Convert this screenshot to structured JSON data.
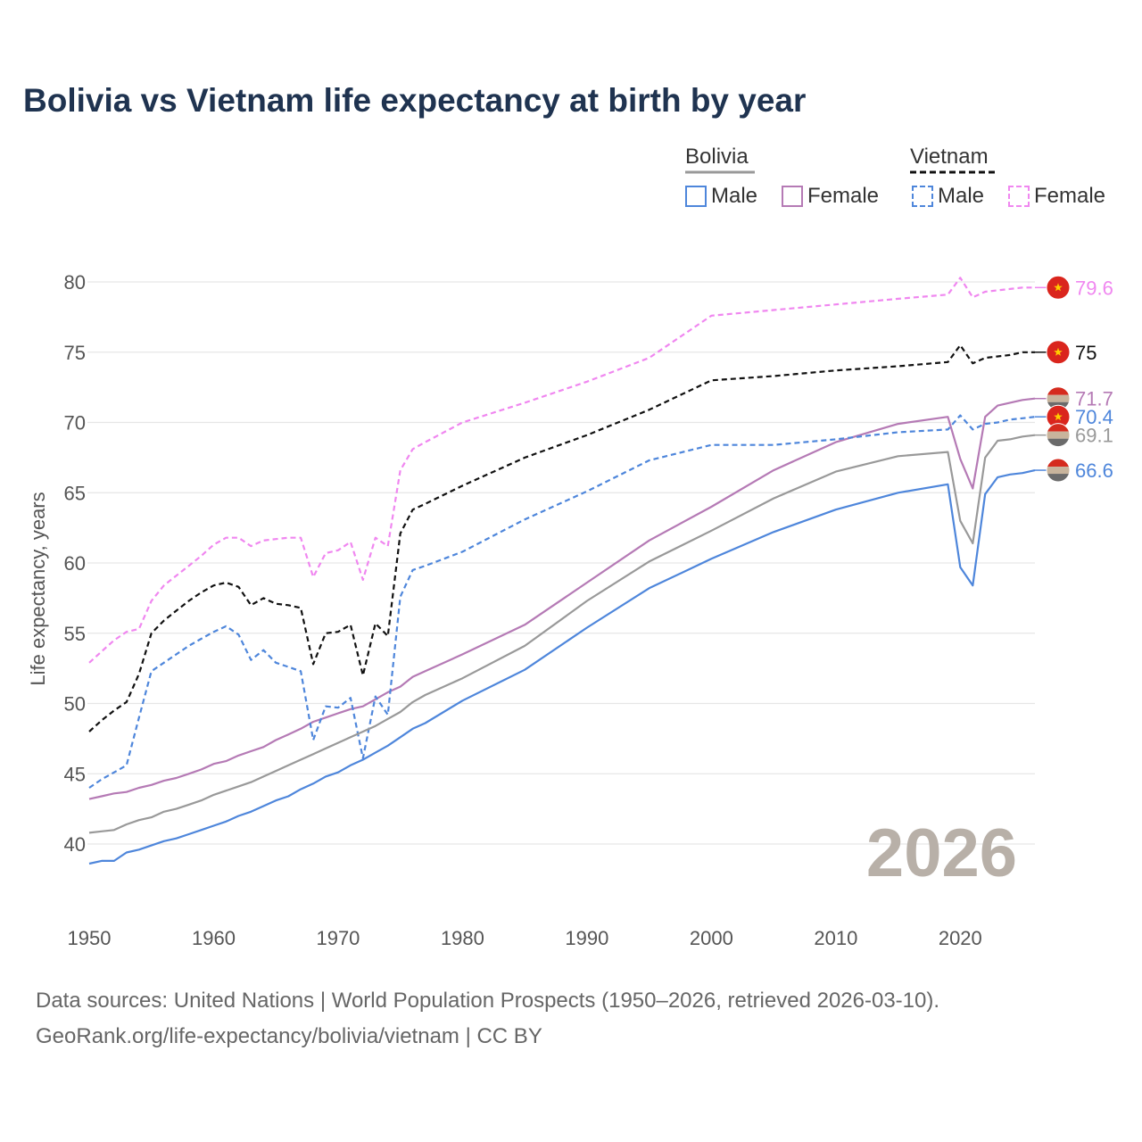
{
  "title": "Bolivia vs Vietnam life expectancy at birth by year",
  "legend": {
    "groups": [
      {
        "name": "Bolivia",
        "color": "#999999",
        "dash": false,
        "items": [
          {
            "label": "Male",
            "color": "#4e86db"
          },
          {
            "label": "Female",
            "color": "#b57ab5"
          }
        ]
      },
      {
        "name": "Vietnam",
        "color": "#111111",
        "dash": true,
        "items": [
          {
            "label": "Male",
            "color": "#4e86db"
          },
          {
            "label": "Female",
            "color": "#f087f0"
          }
        ]
      }
    ]
  },
  "source_lines": [
    "Data sources: United Nations | World Population Prospects (1950–2026, retrieved 2026-03-10).",
    "GeoRank.org/life-expectancy/bolivia/vietnam | CC BY"
  ],
  "chart_data": {
    "type": "line",
    "title": "Bolivia vs Vietnam life expectancy at birth by year",
    "xlabel": "",
    "ylabel": "Life expectancy, years",
    "xlim": [
      1950,
      2026
    ],
    "ylim": [
      37,
      82
    ],
    "xticks": [
      "1950",
      "1960",
      "1970",
      "1980",
      "1990",
      "2000",
      "2010",
      "2020"
    ],
    "yticks": [
      "40",
      "45",
      "50",
      "55",
      "60",
      "65",
      "70",
      "75",
      "80"
    ],
    "grid": true,
    "watermark_year": "2026",
    "x_anchors": [
      1950,
      1951,
      1952,
      1953,
      1954,
      1955,
      1956,
      1957,
      1958,
      1959,
      1960,
      1961,
      1962,
      1963,
      1964,
      1965,
      1966,
      1967,
      1968,
      1969,
      1970,
      1971,
      1972,
      1973,
      1974,
      1975,
      1976,
      1977,
      1980,
      1985,
      1990,
      1995,
      2000,
      2005,
      2010,
      2015,
      2019,
      2020,
      2021,
      2022,
      2023,
      2024,
      2025,
      2026
    ],
    "series": [
      {
        "name": "Vietnam Female",
        "country": "Vietnam",
        "sex": "Female",
        "color": "#f087f0",
        "dash": true,
        "end_label": "79.6",
        "flag": "vietnam",
        "values": [
          52.9,
          53.7,
          54.5,
          55.1,
          55.3,
          57.3,
          58.4,
          59.1,
          59.8,
          60.5,
          61.3,
          61.8,
          61.8,
          61.2,
          61.6,
          61.7,
          61.8,
          61.8,
          59.0,
          60.7,
          60.9,
          61.5,
          58.8,
          61.8,
          61.2,
          66.6,
          68.1,
          68.6,
          70.0,
          71.4,
          72.9,
          74.6,
          77.6,
          78.0,
          78.4,
          78.8,
          79.1,
          80.3,
          78.9,
          79.3,
          79.4,
          79.5,
          79.6,
          79.6
        ]
      },
      {
        "name": "Vietnam Total",
        "country": "Vietnam",
        "sex": "Total",
        "color": "#111111",
        "dash": true,
        "end_label": "75",
        "flag": "vietnam",
        "values": [
          48.0,
          48.8,
          49.5,
          50.1,
          52.1,
          55.0,
          55.9,
          56.6,
          57.3,
          57.9,
          58.4,
          58.6,
          58.3,
          57.0,
          57.5,
          57.1,
          57.0,
          56.8,
          52.8,
          55.0,
          55.1,
          55.6,
          52.0,
          55.7,
          54.8,
          62.1,
          63.8,
          64.2,
          65.5,
          67.5,
          69.1,
          70.9,
          73.0,
          73.3,
          73.7,
          74.0,
          74.3,
          75.5,
          74.2,
          74.6,
          74.7,
          74.8,
          75.0,
          75.0
        ]
      },
      {
        "name": "Bolivia Female",
        "country": "Bolivia",
        "sex": "Female",
        "color": "#b57ab5",
        "dash": false,
        "end_label": "71.7",
        "flag": "bolivia",
        "values": [
          43.2,
          43.4,
          43.6,
          43.7,
          44.0,
          44.2,
          44.5,
          44.7,
          45.0,
          45.3,
          45.7,
          45.9,
          46.3,
          46.6,
          46.9,
          47.4,
          47.8,
          48.2,
          48.7,
          49.0,
          49.3,
          49.6,
          49.8,
          50.3,
          50.8,
          51.2,
          51.9,
          52.3,
          53.5,
          55.6,
          58.6,
          61.6,
          64.0,
          66.6,
          68.6,
          69.9,
          70.4,
          67.4,
          65.3,
          70.4,
          71.2,
          71.4,
          71.6,
          71.7
        ]
      },
      {
        "name": "Vietnam Male",
        "country": "Vietnam",
        "sex": "Male",
        "color": "#4e86db",
        "dash": true,
        "end_label": "70.4",
        "flag": "vietnam",
        "values": [
          44.0,
          44.6,
          45.1,
          45.6,
          49.0,
          52.3,
          52.9,
          53.5,
          54.1,
          54.6,
          55.1,
          55.5,
          54.9,
          53.1,
          53.8,
          52.9,
          52.6,
          52.3,
          47.4,
          49.8,
          49.7,
          50.4,
          46.1,
          50.5,
          49.2,
          57.6,
          59.5,
          59.8,
          60.8,
          63.1,
          65.1,
          67.3,
          68.4,
          68.4,
          68.8,
          69.3,
          69.5,
          70.5,
          69.5,
          69.9,
          70.0,
          70.2,
          70.3,
          70.4
        ]
      },
      {
        "name": "Bolivia Total",
        "country": "Bolivia",
        "sex": "Total",
        "color": "#999999",
        "dash": false,
        "end_label": "69.1",
        "flag": "bolivia",
        "values": [
          40.8,
          40.9,
          41.0,
          41.4,
          41.7,
          41.9,
          42.3,
          42.5,
          42.8,
          43.1,
          43.5,
          43.8,
          44.1,
          44.4,
          44.8,
          45.2,
          45.6,
          46.0,
          46.4,
          46.8,
          47.2,
          47.6,
          48.0,
          48.4,
          48.9,
          49.4,
          50.1,
          50.6,
          51.8,
          54.1,
          57.3,
          60.1,
          62.3,
          64.6,
          66.5,
          67.6,
          67.9,
          63.0,
          61.4,
          67.5,
          68.7,
          68.8,
          69.0,
          69.1
        ]
      },
      {
        "name": "Bolivia Male",
        "country": "Bolivia",
        "sex": "Male",
        "color": "#4e86db",
        "dash": false,
        "end_label": "66.6",
        "flag": "bolivia",
        "values": [
          38.6,
          38.8,
          38.8,
          39.4,
          39.6,
          39.9,
          40.2,
          40.4,
          40.7,
          41.0,
          41.3,
          41.6,
          42.0,
          42.3,
          42.7,
          43.1,
          43.4,
          43.9,
          44.3,
          44.8,
          45.1,
          45.6,
          46.0,
          46.5,
          47.0,
          47.6,
          48.2,
          48.6,
          50.2,
          52.4,
          55.4,
          58.2,
          60.3,
          62.2,
          63.8,
          65.0,
          65.6,
          59.7,
          58.4,
          64.9,
          66.1,
          66.3,
          66.4,
          66.6
        ]
      }
    ]
  }
}
